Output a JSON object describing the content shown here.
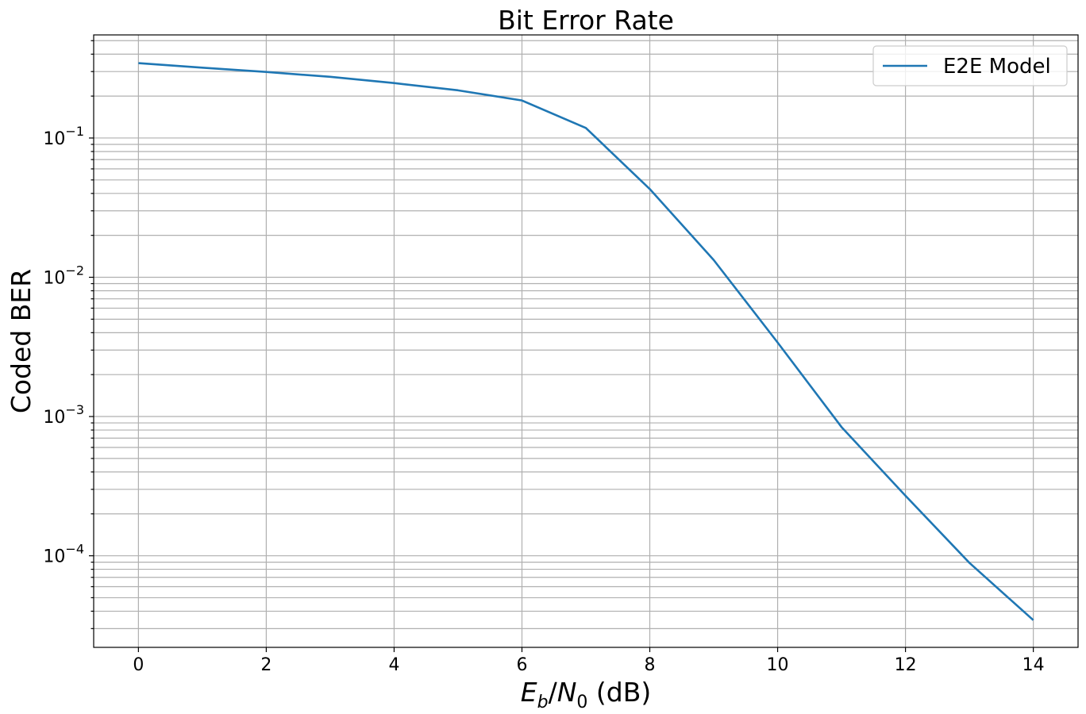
{
  "chart_data": {
    "type": "line",
    "title": "Bit Error Rate",
    "xlabel": {
      "E": "E",
      "b": "b",
      "slash": "/",
      "N": "N",
      "zero": "0",
      "unit": " (dB)"
    },
    "ylabel": "Coded BER",
    "xlim": [
      -0.7,
      14.7
    ],
    "ylim": [
      2.2e-05,
      0.55
    ],
    "yscale": "log",
    "grid": true,
    "legend_position": "top-right",
    "x_ticks": [
      0,
      2,
      4,
      6,
      8,
      10,
      12,
      14
    ],
    "x_tick_labels": [
      "0",
      "2",
      "4",
      "6",
      "8",
      "10",
      "12",
      "14"
    ],
    "y_ticks": [
      {
        "value": 0.1,
        "base": "10",
        "exp": "−1"
      },
      {
        "value": 0.01,
        "base": "10",
        "exp": "−2"
      },
      {
        "value": 0.001,
        "base": "10",
        "exp": "−3"
      },
      {
        "value": 0.0001,
        "base": "10",
        "exp": "−4"
      }
    ],
    "series": [
      {
        "name": "E2E Model",
        "color": "#1f77b4",
        "x": [
          0,
          1,
          2,
          3,
          4,
          5,
          6,
          7,
          8,
          9,
          10,
          11,
          12,
          13,
          14
        ],
        "y": [
          0.345,
          0.32,
          0.298,
          0.275,
          0.248,
          0.22,
          0.186,
          0.118,
          0.043,
          0.0133,
          0.0034,
          0.00084,
          0.00027,
          8.9e-05,
          3.45e-05
        ]
      }
    ]
  }
}
